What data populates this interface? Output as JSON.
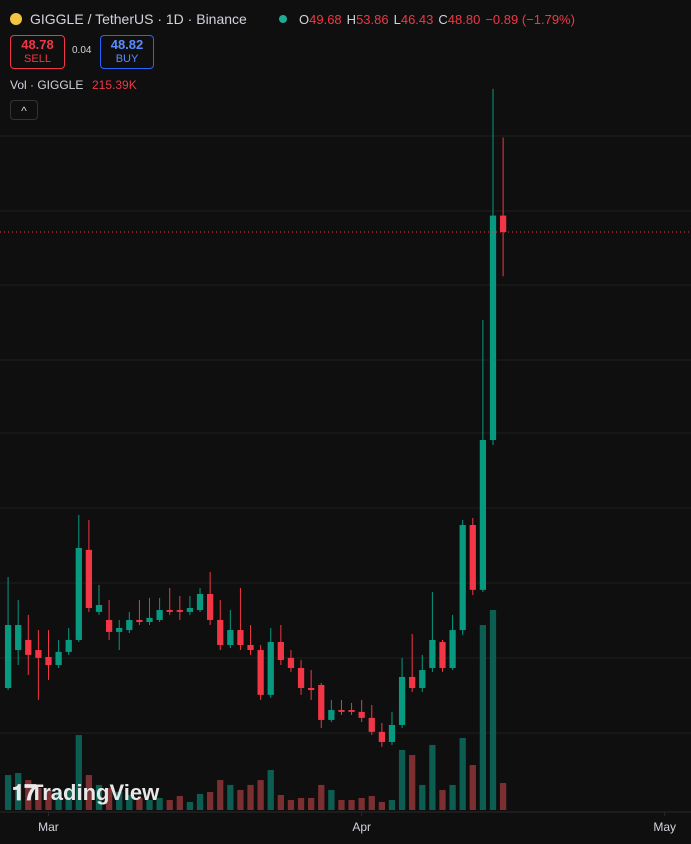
{
  "chart_data": {
    "type": "candlestick",
    "title": "GIGGLE / TetherUS · 1D · Binance",
    "ohlc_legend": [
      {
        "label": "O",
        "value": "49.68"
      },
      {
        "label": "H",
        "value": "53.86"
      },
      {
        "label": "L",
        "value": "46.43"
      },
      {
        "label": "C",
        "value": "48.80"
      }
    ],
    "change": "−0.89 (−1.79%)",
    "sell": {
      "price": "48.78",
      "label": "SELL"
    },
    "spread": "0.04",
    "buy": {
      "price": "48.82",
      "label": "BUY"
    },
    "up_color": "#089981",
    "down_color": "#f23645",
    "xlim": [
      -0.8,
      67.6
    ],
    "xticks": [
      {
        "value": 4,
        "label": "Mar"
      },
      {
        "value": 35,
        "label": "Apr"
      },
      {
        "value": 65,
        "label": "May"
      }
    ],
    "ylim": [
      17.87,
      57.47
    ],
    "open": [
      24.4,
      26.43,
      26.97,
      26.43,
      26.06,
      25.63,
      26.33,
      26.97,
      31.79,
      28.47,
      28.04,
      27.4,
      27.5,
      28.04,
      27.93,
      28.04,
      28.57,
      28.57,
      28.47,
      28.57,
      29.43,
      28.04,
      26.7,
      27.5,
      26.7,
      26.43,
      24.03,
      26.86,
      26.01,
      25.47,
      24.4,
      24.56,
      22.69,
      23.22,
      23.22,
      23.12,
      22.8,
      22.05,
      21.51,
      22.42,
      24.99,
      24.4,
      25.47,
      26.86,
      25.47,
      27.5,
      33.12,
      29.65,
      37.67,
      49.68
    ],
    "high": [
      30.34,
      29.11,
      28.31,
      27.5,
      27.5,
      26.97,
      27.61,
      33.66,
      33.39,
      29.91,
      29.11,
      28.04,
      28.47,
      29.11,
      29.22,
      29.22,
      29.75,
      29.32,
      29.32,
      29.75,
      30.61,
      29.11,
      28.57,
      29.75,
      27.77,
      26.7,
      27.61,
      27.77,
      26.43,
      25.9,
      25.36,
      24.67,
      23.76,
      23.76,
      23.6,
      23.76,
      23.49,
      22.53,
      23.12,
      26.01,
      27.29,
      26.17,
      29.54,
      26.97,
      28.31,
      33.39,
      33.5,
      44.09,
      56.46,
      53.86
    ],
    "low": [
      24.29,
      25.63,
      25.1,
      23.76,
      24.83,
      25.47,
      26.17,
      26.86,
      28.47,
      28.31,
      26.97,
      26.43,
      27.34,
      27.77,
      27.77,
      27.93,
      28.31,
      28.04,
      28.31,
      28.47,
      27.77,
      26.43,
      26.54,
      26.43,
      26.17,
      23.76,
      23.87,
      25.63,
      25.26,
      24.03,
      23.76,
      22.26,
      22.58,
      22.96,
      22.96,
      22.58,
      21.89,
      21.25,
      21.35,
      22.26,
      24.19,
      24.19,
      25.26,
      25.26,
      25.36,
      27.24,
      29.38,
      29.54,
      37.4,
      46.43
    ],
    "close": [
      27.77,
      27.77,
      26.17,
      26.01,
      25.63,
      26.33,
      26.97,
      31.89,
      28.68,
      28.84,
      27.4,
      27.61,
      28.04,
      27.93,
      28.15,
      28.57,
      28.47,
      28.47,
      28.68,
      29.43,
      28.04,
      26.7,
      27.5,
      26.7,
      26.43,
      24.03,
      26.86,
      25.9,
      25.47,
      24.4,
      24.29,
      22.69,
      23.22,
      23.12,
      23.12,
      22.8,
      22.05,
      21.51,
      22.42,
      24.99,
      24.4,
      25.36,
      26.97,
      25.47,
      27.5,
      33.12,
      29.65,
      37.67,
      49.68,
      48.8
    ],
    "volume": {
      "name": "Vol · GIGGLE",
      "values": [
        279000,
        295000,
        239000,
        176000,
        160000,
        144000,
        160000,
        598000,
        279000,
        200000,
        176000,
        144000,
        120000,
        96000,
        80000,
        96000,
        80000,
        112000,
        64000,
        128000,
        144000,
        239000,
        200000,
        160000,
        200000,
        239000,
        319000,
        120000,
        80000,
        96000,
        96000,
        200000,
        160000,
        80000,
        80000,
        96000,
        112000,
        64000,
        80000,
        479000,
        439000,
        200000,
        519000,
        160000,
        200000,
        575000,
        359000,
        1476000,
        1596000,
        215390
      ],
      "value_labels": [
        null,
        null,
        null,
        null,
        null,
        null,
        null,
        null,
        null,
        null,
        null,
        null,
        null,
        null,
        null,
        null,
        null,
        null,
        null,
        null,
        null,
        null,
        null,
        null,
        null,
        null,
        null,
        null,
        null,
        null,
        null,
        null,
        null,
        null,
        null,
        null,
        null,
        null,
        null,
        null,
        null,
        null,
        null,
        null,
        null,
        null,
        null,
        null,
        null,
        "215.39K"
      ],
      "up_color": "#0c5e52",
      "down_color": "#7c2f31",
      "vlim": [
        0,
        1596000
      ]
    },
    "watermark": "TradingView"
  }
}
